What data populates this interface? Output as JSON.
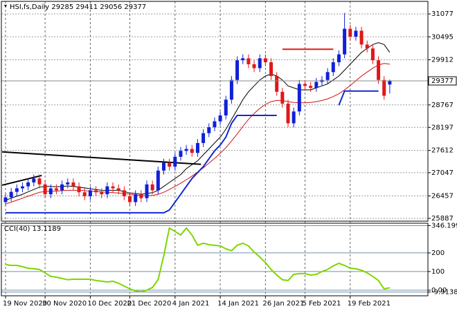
{
  "chart_data": [
    {
      "type": "candlestick",
      "title": "HSI,fs,Daily  29285 29411 29056 29377",
      "up_color": "#1020d8",
      "down_color": "#e01818",
      "open": [
        26300,
        26420,
        26560,
        26650,
        26700,
        26800,
        26900,
        26750,
        26500,
        26650,
        26600,
        26750,
        26800,
        26700,
        26550,
        26450,
        26600,
        26550,
        26500,
        26700,
        26650,
        26600,
        26450,
        26300,
        26500,
        26400,
        26750,
        26600,
        27100,
        27300,
        27200,
        27450,
        27600,
        27650,
        27550,
        27800,
        28050,
        28200,
        28350,
        28500,
        28900,
        29400,
        29900,
        29950,
        29800,
        29700,
        29950,
        29850,
        29500,
        29100,
        28800,
        28300,
        28600,
        29300,
        29250,
        29200,
        29350,
        29400,
        29600,
        29850,
        30050,
        30700,
        30500,
        30650,
        30300,
        30200,
        29900,
        29400,
        29285
      ],
      "high": [
        26520,
        26660,
        26750,
        26800,
        26900,
        27000,
        27000,
        26850,
        26750,
        26750,
        26850,
        26900,
        26900,
        26800,
        26650,
        26700,
        26700,
        26650,
        26800,
        26800,
        26750,
        26700,
        26550,
        26600,
        26600,
        26850,
        26850,
        27200,
        27400,
        27400,
        27550,
        27700,
        27750,
        27750,
        27900,
        28150,
        28300,
        28450,
        28600,
        29000,
        29500,
        30000,
        30050,
        30050,
        29900,
        30050,
        30050,
        29950,
        29600,
        29200,
        28900,
        28700,
        29400,
        29400,
        29350,
        29450,
        29500,
        29700,
        29950,
        30150,
        31100,
        30800,
        30750,
        30750,
        30400,
        30300,
        30000,
        29500,
        29411
      ],
      "low": [
        26200,
        26320,
        26460,
        26550,
        26600,
        26700,
        26650,
        26400,
        26400,
        26500,
        26500,
        26650,
        26600,
        26450,
        26350,
        26350,
        26450,
        26400,
        26400,
        26550,
        26500,
        26350,
        26200,
        26200,
        26300,
        26300,
        26500,
        26500,
        27000,
        27100,
        27100,
        27350,
        27500,
        27450,
        27450,
        27700,
        27950,
        28100,
        28250,
        28400,
        28800,
        29300,
        29800,
        29700,
        29600,
        29600,
        29750,
        29400,
        29000,
        28700,
        28200,
        28200,
        28500,
        29150,
        29100,
        29100,
        29250,
        29300,
        29500,
        29750,
        29950,
        30400,
        30400,
        30200,
        30100,
        29800,
        29300,
        28900,
        29056
      ],
      "close": [
        26420,
        26560,
        26650,
        26700,
        26800,
        26900,
        26750,
        26500,
        26650,
        26600,
        26750,
        26800,
        26700,
        26550,
        26450,
        26600,
        26550,
        26500,
        26700,
        26650,
        26600,
        26450,
        26300,
        26500,
        26400,
        26750,
        26600,
        27100,
        27300,
        27200,
        27450,
        27600,
        27650,
        27550,
        27800,
        28050,
        28200,
        28350,
        28500,
        28900,
        29400,
        29900,
        29950,
        29800,
        29700,
        29950,
        29850,
        29500,
        29100,
        28800,
        28300,
        28600,
        29300,
        29250,
        29200,
        29350,
        29400,
        29600,
        29850,
        30050,
        30700,
        30500,
        30650,
        30300,
        30200,
        29900,
        29400,
        29000,
        29377
      ],
      "series": [
        {
          "color": "#000000",
          "values": [
            26350,
            26400,
            26450,
            26500,
            26560,
            26620,
            26680,
            26700,
            26700,
            26690,
            26700,
            26710,
            26700,
            26680,
            26660,
            26640,
            26620,
            26600,
            26600,
            26600,
            26600,
            26570,
            26530,
            26520,
            26500,
            26520,
            26540,
            26600,
            26700,
            26800,
            26900,
            27000,
            27150,
            27250,
            27350,
            27500,
            27650,
            27800,
            27950,
            28150,
            28400,
            28650,
            28900,
            29100,
            29250,
            29400,
            29500,
            29550,
            29500,
            29400,
            29250,
            29200,
            29150,
            29150,
            29150,
            29200,
            29250,
            29300,
            29400,
            29500,
            29650,
            29800,
            29950,
            30100,
            30200,
            30300,
            30350,
            30300,
            30100
          ]
        },
        {
          "color": "#d01010",
          "values": [
            26250,
            26300,
            26350,
            26400,
            26450,
            26500,
            26550,
            26570,
            26580,
            26580,
            26590,
            26600,
            26600,
            26600,
            26590,
            26580,
            26570,
            26560,
            26550,
            26540,
            26530,
            26520,
            26500,
            26480,
            26460,
            26460,
            26470,
            26500,
            26550,
            26620,
            26700,
            26780,
            26870,
            26960,
            27060,
            27170,
            27290,
            27410,
            27540,
            27680,
            27850,
            28030,
            28220,
            28400,
            28550,
            28680,
            28780,
            28850,
            28880,
            28880,
            28850,
            28830,
            28820,
            28820,
            28830,
            28850,
            28880,
            28920,
            28980,
            29050,
            29150,
            29260,
            29380,
            29500,
            29600,
            29700,
            29780,
            29820,
            29800
          ]
        },
        {
          "color": "#1028d0",
          "values": [
            26030,
            26030,
            26030,
            26030,
            26030,
            26030,
            26030,
            26030,
            26030,
            26030,
            26030,
            26030,
            26030,
            26030,
            26030,
            26030,
            26030,
            26030,
            26030,
            26030,
            26030,
            26030,
            26030,
            26030,
            26030,
            26030,
            26030,
            26030,
            26030,
            26100,
            26300,
            26500,
            26700,
            26900,
            27050,
            27200,
            27400,
            27600,
            27750,
            27950,
            28300,
            28500,
            28500,
            28500,
            28500,
            28500,
            28500,
            28500,
            28500,
            null,
            null,
            null,
            null,
            null,
            null,
            null,
            null,
            null,
            null,
            28760,
            29120,
            29120,
            29120,
            29120,
            29120,
            29120,
            29120,
            null,
            null
          ]
        }
      ],
      "trendlines": [
        {
          "color": "#000000",
          "x": [
            -0.6,
            34.6
          ],
          "y": [
            27575,
            27260
          ]
        },
        {
          "color": "#000000",
          "x": [
            -0.6,
            6.4
          ],
          "y": [
            26730,
            26976
          ]
        },
        {
          "color": "#e01818",
          "x": [
            49,
            58
          ],
          "y": [
            30180,
            30180
          ]
        }
      ],
      "last": 29377,
      "ylim": [
        25817,
        31377
      ],
      "yticks": [
        31077,
        30495,
        29912,
        28767,
        28197,
        27612,
        27047,
        26457,
        25887
      ],
      "xticks": [
        {
          "value": 0,
          "label": "19 Nov 2020"
        },
        {
          "value": 7,
          "label": "30 Nov 2020"
        },
        {
          "value": 15,
          "label": "10 Dec 2020"
        },
        {
          "value": 22,
          "label": "21 Dec 2020"
        },
        {
          "value": 30,
          "label": "4 Jan 2021"
        },
        {
          "value": 38,
          "label": "14 Jan 2021"
        },
        {
          "value": 46,
          "label": "26 Jan 2021"
        },
        {
          "value": 53,
          "label": "5 Feb 2021"
        },
        {
          "value": 61,
          "label": "19 Feb 2021"
        }
      ],
      "grid": true
    },
    {
      "type": "line",
      "title": "CCI(40) 13.1189",
      "color": "#7ed600",
      "values": [
        137,
        133,
        133,
        126,
        118,
        115,
        111,
        93,
        74,
        70,
        63,
        56,
        59,
        59,
        59,
        59,
        52,
        48,
        44,
        48,
        37,
        22,
        7,
        -4,
        -8,
        0,
        15,
        56,
        185,
        333,
        315,
        296,
        333,
        296,
        241,
        252,
        244,
        241,
        237,
        222,
        211,
        241,
        252,
        237,
        204,
        178,
        148,
        111,
        81,
        56,
        52,
        85,
        89,
        89,
        81,
        85,
        100,
        111,
        130,
        144,
        133,
        118,
        115,
        107,
        93,
        74,
        52,
        7,
        13.1189
      ],
      "ylim": [
        -30,
        359
      ],
      "yticks": [
        346.1991,
        200,
        100,
        {
          "value": 0,
          "label": "0.00"
        },
        -9.9138
      ]
    }
  ]
}
